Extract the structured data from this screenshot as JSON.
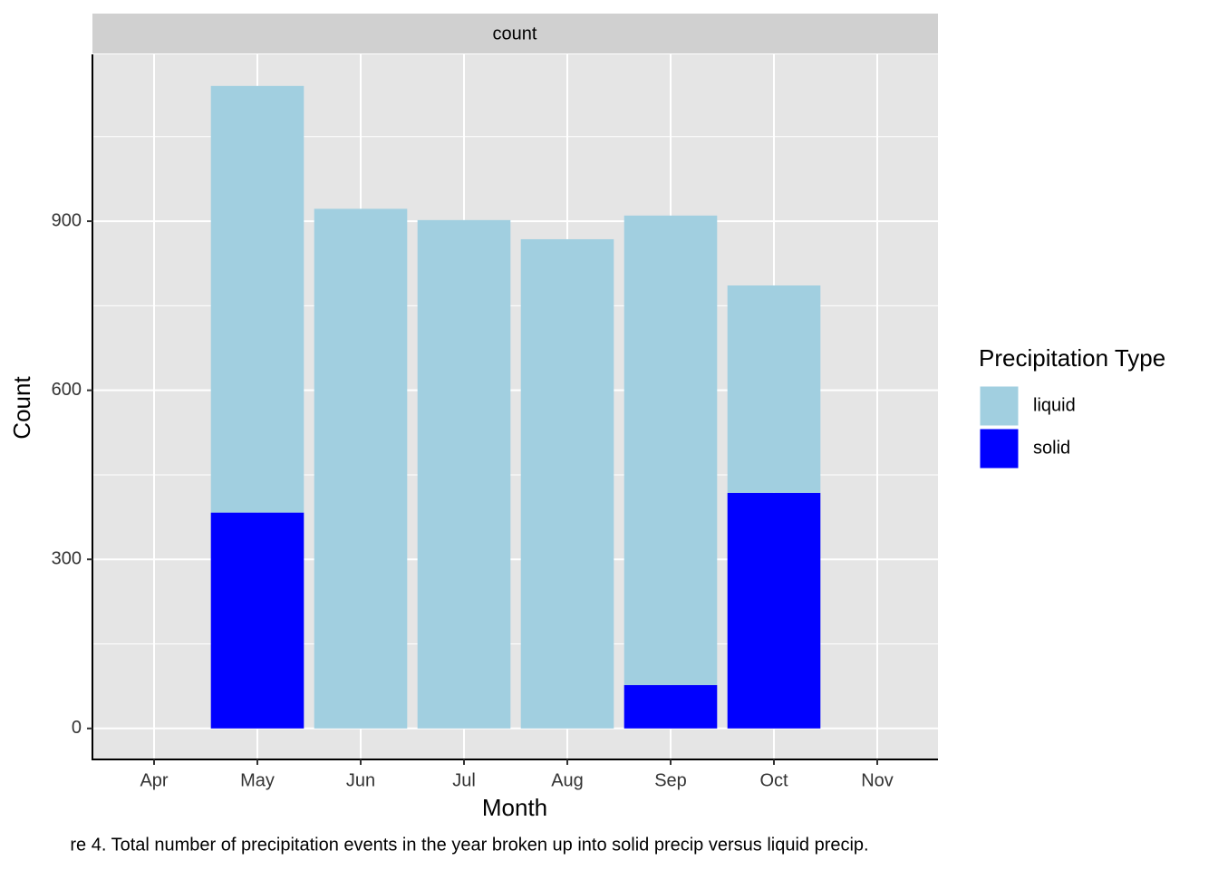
{
  "chart_data": {
    "type": "stacked-bar",
    "strip": "count",
    "x_label": "Month",
    "y_label": "Count",
    "caption": "re 4. Total number of precipitation events in the year broken up into solid precip versus liquid precip.",
    "categories": [
      "Apr",
      "May",
      "Jun",
      "Jul",
      "Aug",
      "Sep",
      "Oct",
      "Nov"
    ],
    "series": [
      {
        "name": "liquid",
        "color": "#a1cfe0",
        "values": [
          null,
          757,
          922,
          902,
          868,
          833,
          368,
          null
        ]
      },
      {
        "name": "solid",
        "color": "#0000ff",
        "values": [
          null,
          383,
          0,
          0,
          0,
          77,
          418,
          null
        ]
      }
    ],
    "ylim": [
      -55,
      1196
    ],
    "yticks": [
      0,
      300,
      600,
      900
    ],
    "y_minor_ticks": [
      150,
      450,
      750,
      1050
    ],
    "grid": true,
    "legend_title": "Precipitation Type",
    "legend_position": "right"
  }
}
